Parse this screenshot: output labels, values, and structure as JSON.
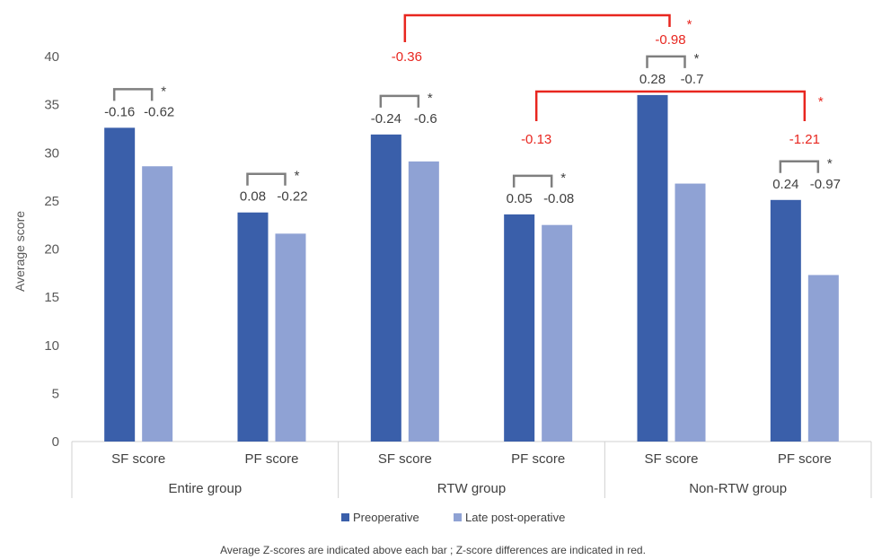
{
  "chart_data": {
    "type": "bar",
    "ylabel": "Average score",
    "ylim": [
      0,
      40
    ],
    "yticks": [
      0,
      5,
      10,
      15,
      20,
      25,
      30,
      35,
      40
    ],
    "groups": [
      {
        "name": "Entire group",
        "categories": [
          "SF score",
          "PF score"
        ]
      },
      {
        "name": "RTW group",
        "categories": [
          "SF score",
          "PF score"
        ]
      },
      {
        "name": "Non-RTW group",
        "categories": [
          "SF score",
          "PF score"
        ]
      }
    ],
    "categories": [
      "SF score",
      "PF score",
      "SF score",
      "PF score",
      "SF score",
      "PF score"
    ],
    "series": [
      {
        "name": "Preoperative",
        "color": "#3a5faa",
        "values": [
          32.6,
          23.8,
          31.9,
          23.6,
          36.0,
          25.1
        ]
      },
      {
        "name": "Late post-operative",
        "color": "#8fa2d4",
        "values": [
          28.6,
          21.6,
          29.1,
          22.5,
          26.8,
          17.3
        ]
      }
    ],
    "z_scores": [
      [
        "-0.16",
        "-0.62"
      ],
      [
        "0.08",
        "-0.22"
      ],
      [
        "-0.24",
        "-0.6"
      ],
      [
        "0.05",
        "-0.08"
      ],
      [
        "0.28",
        "-0.7"
      ],
      [
        "0.24",
        "-0.97"
      ]
    ],
    "significance_marker": "*",
    "red_differences": [
      {
        "label": "-0.36",
        "between": "RTW SF score vs Non-RTW SF score",
        "significant": true
      },
      {
        "label": "-0.98",
        "between": "Non-RTW SF score",
        "significant": true
      },
      {
        "label": "-0.13",
        "between": "RTW PF score vs Non-RTW PF score",
        "significant": true
      },
      {
        "label": "-1.21",
        "between": "Non-RTW PF score",
        "significant": true
      }
    ],
    "legend": [
      "Preoperative",
      "Late post-operative"
    ],
    "legend_position": "bottom",
    "note": "Average Z-scores are indicated above each bar ; Z-score differences are indicated in red.",
    "grid": false
  }
}
